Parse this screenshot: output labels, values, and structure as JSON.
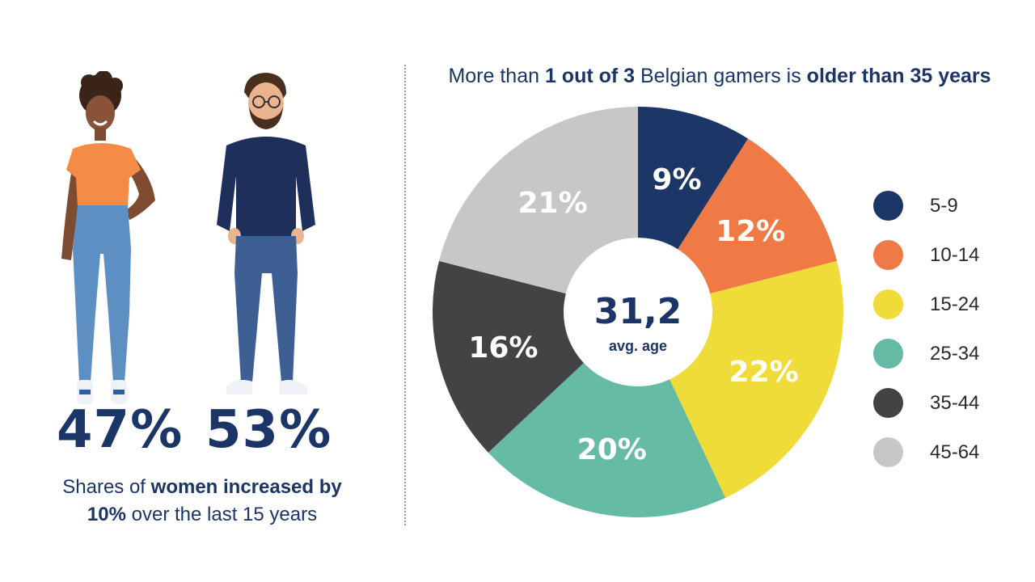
{
  "left": {
    "women_pct": "47%",
    "men_pct": "53%",
    "caption": {
      "part1": "Shares of ",
      "bold1": "women increased by",
      "bold2": "10%",
      "part2": " over the last 15 years"
    }
  },
  "title": {
    "part1": "More than ",
    "bold1": "1 out of 3",
    "part2": " Belgian gamers is ",
    "bold2": "older than 35 years"
  },
  "chart_data": {
    "type": "pie",
    "categories": [
      "5-9",
      "10-14",
      "15-24",
      "25-34",
      "35-44",
      "45-64"
    ],
    "values": [
      9,
      12,
      22,
      20,
      16,
      21
    ],
    "value_labels": [
      "9%",
      "12%",
      "22%",
      "20%",
      "16%",
      "21%"
    ],
    "colors": [
      "#1c3668",
      "#ef7a45",
      "#efdc38",
      "#66bba5",
      "#434345",
      "#c7c7c9"
    ],
    "center_value": "31,2",
    "center_label": "avg. age",
    "legend_position": "right"
  }
}
